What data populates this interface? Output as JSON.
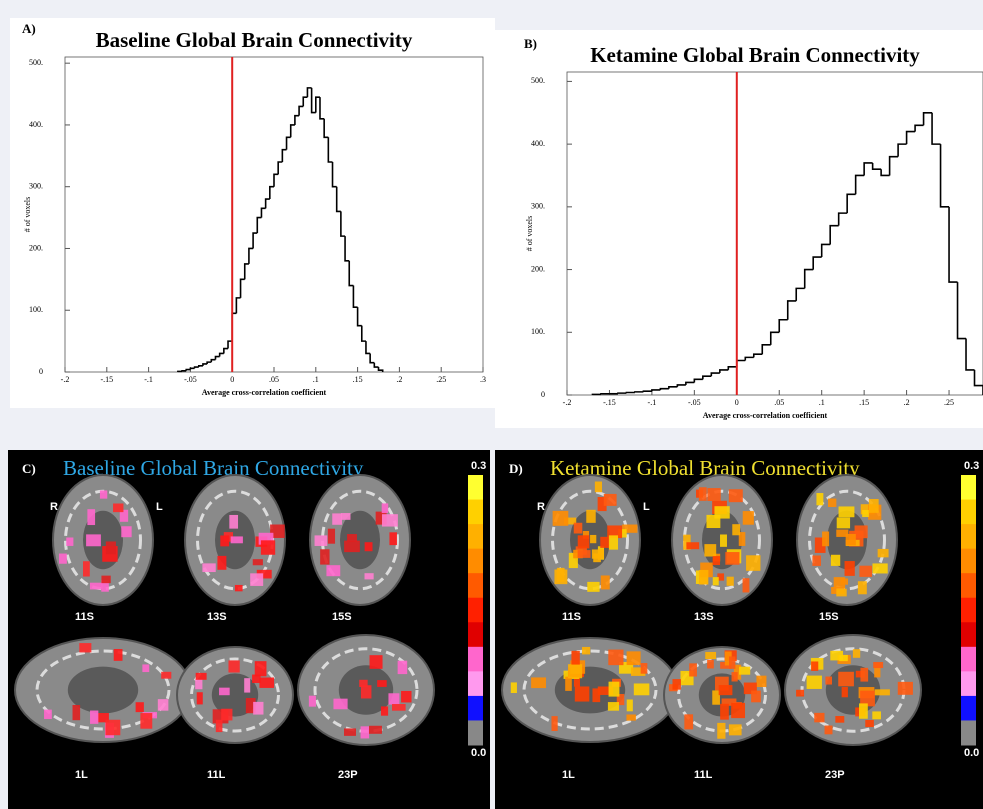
{
  "chart_data": [
    {
      "type": "histogram",
      "panel_label": "A)",
      "title": "Baseline Global Brain Connectivity",
      "x_label": "Average cross-correlation coefficient",
      "y_label": "# of voxels",
      "color": "#000000",
      "bins": [
        -0.065,
        -0.06,
        -0.055,
        -0.05,
        -0.045,
        -0.04,
        -0.035,
        -0.03,
        -0.025,
        -0.02,
        -0.015,
        -0.01,
        -0.005,
        0,
        0.005,
        0.01,
        0.015,
        0.02,
        0.025,
        0.03,
        0.035,
        0.04,
        0.045,
        0.05,
        0.055,
        0.06,
        0.065,
        0.07,
        0.075,
        0.08,
        0.085,
        0.09,
        0.095,
        0.1,
        0.105,
        0.11,
        0.115,
        0.12,
        0.125,
        0.13,
        0.135,
        0.14,
        0.145,
        0.15,
        0.155,
        0.16,
        0.165,
        0.17,
        0.175,
        0.18
      ],
      "counts": [
        1,
        2,
        4,
        6,
        8,
        10,
        13,
        16,
        20,
        25,
        30,
        38,
        50,
        95,
        120,
        150,
        175,
        200,
        225,
        250,
        265,
        280,
        300,
        320,
        340,
        360,
        380,
        400,
        415,
        430,
        445,
        460,
        420,
        445,
        410,
        380,
        340,
        300,
        260,
        220,
        180,
        140,
        105,
        75,
        50,
        30,
        15,
        8,
        3
      ],
      "xlim": [
        -0.2,
        0.3
      ],
      "xticks": [
        {
          "value": -0.2,
          "label": "-.2"
        },
        {
          "value": -0.15,
          "label": "-.15"
        },
        {
          "value": -0.1,
          "label": "-.1"
        },
        {
          "value": -0.05,
          "label": "-.05"
        },
        0,
        {
          "value": 0.05,
          "label": ".05"
        },
        {
          "value": 0.1,
          "label": ".1"
        },
        {
          "value": 0.15,
          "label": ".15"
        },
        {
          "value": 0.2,
          "label": ".2"
        },
        {
          "value": 0.25,
          "label": ".25"
        },
        {
          "value": 0.3,
          "label": ".3"
        }
      ],
      "ylim": [
        0,
        510
      ],
      "yticks": [
        0,
        {
          "value": 100,
          "label": "100."
        },
        {
          "value": 200,
          "label": "200."
        },
        {
          "value": 300,
          "label": "300."
        },
        {
          "value": 400,
          "label": "400."
        },
        {
          "value": 500,
          "label": "500."
        }
      ],
      "vline": {
        "value": 0,
        "color": "#e02020"
      }
    },
    {
      "type": "histogram",
      "panel_label": "B)",
      "title": "Ketamine Global Brain Connectivity",
      "x_label": "Average cross-correlation coefficient",
      "y_label": "# of voxels",
      "color": "#000000",
      "bins": [
        -0.17,
        -0.16,
        -0.15,
        -0.14,
        -0.13,
        -0.12,
        -0.11,
        -0.1,
        -0.09,
        -0.08,
        -0.07,
        -0.06,
        -0.05,
        -0.04,
        -0.03,
        -0.02,
        -0.01,
        0,
        0.01,
        0.02,
        0.03,
        0.04,
        0.05,
        0.06,
        0.07,
        0.08,
        0.09,
        0.1,
        0.11,
        0.12,
        0.13,
        0.14,
        0.15,
        0.16,
        0.17,
        0.18,
        0.19,
        0.2,
        0.21,
        0.22,
        0.23,
        0.24,
        0.25,
        0.26,
        0.27,
        0.28,
        0.29
      ],
      "counts": [
        1,
        2,
        2,
        3,
        4,
        5,
        6,
        8,
        10,
        13,
        16,
        20,
        25,
        30,
        35,
        40,
        45,
        55,
        60,
        65,
        80,
        100,
        120,
        150,
        170,
        200,
        220,
        240,
        270,
        290,
        320,
        350,
        370,
        360,
        350,
        380,
        400,
        420,
        430,
        450,
        400,
        300,
        180,
        90,
        40,
        15
      ],
      "xlim": [
        -0.2,
        0.29
      ],
      "xticks": [
        {
          "value": -0.2,
          "label": "-.2"
        },
        {
          "value": -0.15,
          "label": "-.15"
        },
        {
          "value": -0.1,
          "label": "-.1"
        },
        {
          "value": -0.05,
          "label": "-.05"
        },
        0,
        {
          "value": 0.05,
          "label": ".05"
        },
        {
          "value": 0.1,
          "label": ".1"
        },
        {
          "value": 0.15,
          "label": ".15"
        },
        {
          "value": 0.2,
          "label": ".2"
        },
        {
          "value": 0.25,
          "label": ".25"
        }
      ],
      "ylim": [
        0,
        515
      ],
      "yticks": [
        0,
        {
          "value": 100,
          "label": "100."
        },
        {
          "value": 200,
          "label": "200."
        },
        {
          "value": 300,
          "label": "300."
        },
        {
          "value": 400,
          "label": "400."
        },
        {
          "value": 500,
          "label": "500."
        }
      ],
      "vline": {
        "value": 0,
        "color": "#e02020"
      }
    }
  ],
  "panels": [
    {
      "label": "C)",
      "title": "Baseline Global Brain Connectivity",
      "title_color": "#2fa8e6",
      "left_right": [
        "R",
        "L"
      ],
      "slices": [
        "11S",
        "13S",
        "15S",
        "1L",
        "11L",
        "23P"
      ],
      "colorbar": [
        "0.3",
        "0.0"
      ]
    },
    {
      "label": "D)",
      "title": "Ketamine Global Brain Connectivity",
      "title_color": "#f0e030",
      "left_right": [
        "R",
        "L"
      ],
      "slices": [
        "11S",
        "13S",
        "15S",
        "1L",
        "11L",
        "23P"
      ],
      "colorbar": [
        "0.3",
        "0.0"
      ]
    }
  ]
}
